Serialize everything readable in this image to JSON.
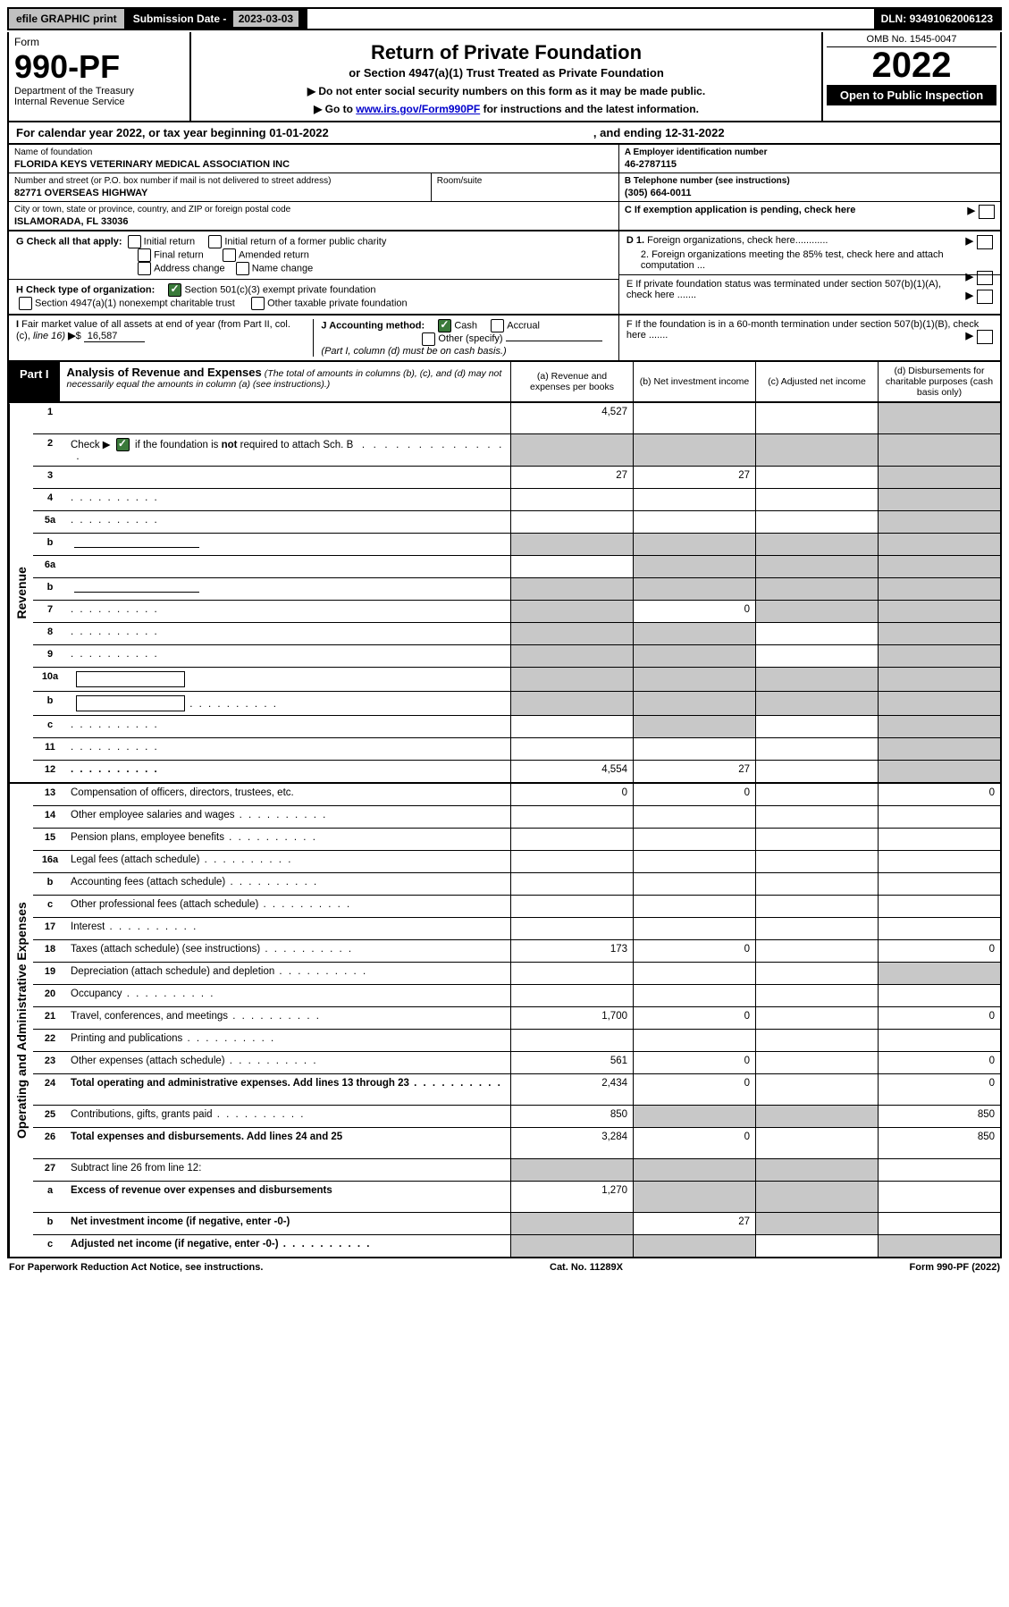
{
  "topbar": {
    "efile": "efile GRAPHIC print",
    "subdate_label": "Submission Date - ",
    "subdate_value": "2023-03-03",
    "dln_label": "DLN: ",
    "dln_value": "93491062006123"
  },
  "header": {
    "form_label": "Form",
    "form_number": "990-PF",
    "dept": "Department of the Treasury",
    "irs": "Internal Revenue Service",
    "title": "Return of Private Foundation",
    "subtitle": "or Section 4947(a)(1) Trust Treated as Private Foundation",
    "instr1": "▶ Do not enter social security numbers on this form as it may be made public.",
    "instr2_pre": "▶ Go to ",
    "instr2_link": "www.irs.gov/Form990PF",
    "instr2_post": " for instructions and the latest information.",
    "omb": "OMB No. 1545-0047",
    "year": "2022",
    "open": "Open to Public Inspection"
  },
  "calyear": {
    "left": "For calendar year 2022, or tax year beginning 01-01-2022",
    "right": ", and ending 12-31-2022"
  },
  "info": {
    "name_lbl": "Name of foundation",
    "name_val": "FLORIDA KEYS VETERINARY MEDICAL ASSOCIATION INC",
    "addr_lbl": "Number and street (or P.O. box number if mail is not delivered to street address)",
    "addr_val": "82771 OVERSEAS HIGHWAY",
    "room_lbl": "Room/suite",
    "city_lbl": "City or town, state or province, country, and ZIP or foreign postal code",
    "city_val": "ISLAMORADA, FL  33036",
    "a_lbl": "A Employer identification number",
    "a_val": "46-2787115",
    "b_lbl": "B Telephone number (see instructions)",
    "b_val": "(305) 664-0011",
    "c_lbl": "C If exemption application is pending, check here",
    "d1_lbl": "D 1. Foreign organizations, check here............",
    "d2_lbl": "2. Foreign organizations meeting the 85% test, check here and attach computation ...",
    "e_lbl": "E  If private foundation status was terminated under section 507(b)(1)(A), check here .......",
    "f_lbl": "F  If the foundation is in a 60-month termination under section 507(b)(1)(B), check here .......",
    "g_lbl": "G Check all that apply:",
    "g_opts": [
      "Initial return",
      "Initial return of a former public charity",
      "Final return",
      "Amended return",
      "Address change",
      "Name change"
    ],
    "h_lbl": "H Check type of organization:",
    "h_opt1": "Section 501(c)(3) exempt private foundation",
    "h_opt2": "Section 4947(a)(1) nonexempt charitable trust",
    "h_opt3": "Other taxable private foundation",
    "i_lbl": "I Fair market value of all assets at end of year (from Part II, col. (c), line 16)",
    "i_val": "16,587",
    "j_lbl": "J Accounting method:",
    "j_cash": "Cash",
    "j_accrual": "Accrual",
    "j_other": "Other (specify)",
    "j_note": "(Part I, column (d) must be on cash basis.)"
  },
  "part1": {
    "tab": "Part I",
    "title": "Analysis of Revenue and Expenses",
    "subtitle": "(The total of amounts in columns (b), (c), and (d) may not necessarily equal the amounts in column (a) (see instructions).)",
    "col_a": "(a)  Revenue and expenses per books",
    "col_b": "(b)  Net investment income",
    "col_c": "(c)  Adjusted net income",
    "col_d": "(d)  Disbursements for charitable purposes (cash basis only)"
  },
  "side": {
    "revenue": "Revenue",
    "expenses": "Operating and Administrative Expenses"
  },
  "rows": [
    {
      "n": "1",
      "d": "",
      "a": "4,527",
      "b": "",
      "c": "",
      "tall": true,
      "ds": true
    },
    {
      "n": "2",
      "d": "",
      "a": "",
      "b": "",
      "c": "",
      "shade_all": true,
      "tall": true,
      "bold_not": true
    },
    {
      "n": "3",
      "d": "",
      "a": "27",
      "b": "27",
      "c": "",
      "ds": true
    },
    {
      "n": "4",
      "d": "",
      "a": "",
      "b": "",
      "c": "",
      "dots": true,
      "ds": true
    },
    {
      "n": "5a",
      "d": "",
      "a": "",
      "b": "",
      "c": "",
      "dots": true,
      "ds": true
    },
    {
      "n": "b",
      "d": "",
      "a": "",
      "b": "",
      "c": "",
      "shade_all": true,
      "inline_line": true
    },
    {
      "n": "6a",
      "d": "",
      "a": "",
      "b": "",
      "c": "",
      "shade_bcd": true
    },
    {
      "n": "b",
      "d": "",
      "a": "",
      "b": "",
      "c": "",
      "shade_all": true,
      "inline_line": true
    },
    {
      "n": "7",
      "d": "",
      "a": "",
      "b": "0",
      "c": "",
      "shade_a": true,
      "shade_cd": true,
      "dots": true
    },
    {
      "n": "8",
      "d": "",
      "a": "",
      "b": "",
      "c": "",
      "shade_ab": true,
      "shade_d": true,
      "dots": true
    },
    {
      "n": "9",
      "d": "",
      "a": "",
      "b": "",
      "c": "",
      "shade_ab": true,
      "shade_d": true,
      "dots": true
    },
    {
      "n": "10a",
      "d": "",
      "a": "",
      "b": "",
      "c": "",
      "shade_all": true,
      "inline_box": true
    },
    {
      "n": "b",
      "d": "",
      "a": "",
      "b": "",
      "c": "",
      "shade_all": true,
      "inline_box": true,
      "dots": true
    },
    {
      "n": "c",
      "d": "",
      "a": "",
      "b": "",
      "c": "",
      "shade_b": true,
      "shade_d": true,
      "dots": true
    },
    {
      "n": "11",
      "d": "",
      "a": "",
      "b": "",
      "c": "",
      "dots": true,
      "ds": true
    },
    {
      "n": "12",
      "d": "",
      "a": "4,554",
      "b": "27",
      "c": "",
      "bold": true,
      "dots": true,
      "ds": true
    }
  ],
  "exp_rows": [
    {
      "n": "13",
      "d": "Compensation of officers, directors, trustees, etc.",
      "a": "0",
      "b": "0",
      "c": "",
      "di": "0"
    },
    {
      "n": "14",
      "d": "Other employee salaries and wages",
      "a": "",
      "b": "",
      "c": "",
      "di": "",
      "dots": true
    },
    {
      "n": "15",
      "d": "Pension plans, employee benefits",
      "a": "",
      "b": "",
      "c": "",
      "di": "",
      "dots": true
    },
    {
      "n": "16a",
      "d": "Legal fees (attach schedule)",
      "a": "",
      "b": "",
      "c": "",
      "di": "",
      "dots": true
    },
    {
      "n": "b",
      "d": "Accounting fees (attach schedule)",
      "a": "",
      "b": "",
      "c": "",
      "di": "",
      "dots": true
    },
    {
      "n": "c",
      "d": "Other professional fees (attach schedule)",
      "a": "",
      "b": "",
      "c": "",
      "di": "",
      "dots": true
    },
    {
      "n": "17",
      "d": "Interest",
      "a": "",
      "b": "",
      "c": "",
      "di": "",
      "dots": true
    },
    {
      "n": "18",
      "d": "Taxes (attach schedule) (see instructions)",
      "a": "173",
      "b": "0",
      "c": "",
      "di": "0",
      "dots": true
    },
    {
      "n": "19",
      "d": "Depreciation (attach schedule) and depletion",
      "a": "",
      "b": "",
      "c": "",
      "di": "",
      "shade_d": true,
      "dots": true
    },
    {
      "n": "20",
      "d": "Occupancy",
      "a": "",
      "b": "",
      "c": "",
      "di": "",
      "dots": true
    },
    {
      "n": "21",
      "d": "Travel, conferences, and meetings",
      "a": "1,700",
      "b": "0",
      "c": "",
      "di": "0",
      "dots": true
    },
    {
      "n": "22",
      "d": "Printing and publications",
      "a": "",
      "b": "",
      "c": "",
      "di": "",
      "dots": true
    },
    {
      "n": "23",
      "d": "Other expenses (attach schedule)",
      "a": "561",
      "b": "0",
      "c": "",
      "di": "0",
      "dots": true
    },
    {
      "n": "24",
      "d": "Total operating and administrative expenses. Add lines 13 through 23",
      "a": "2,434",
      "b": "0",
      "c": "",
      "di": "0",
      "bold": true,
      "tall": true,
      "dots": true
    },
    {
      "n": "25",
      "d": "Contributions, gifts, grants paid",
      "a": "850",
      "b": "",
      "c": "",
      "di": "850",
      "shade_bc": true,
      "dots": true
    },
    {
      "n": "26",
      "d": "Total expenses and disbursements. Add lines 24 and 25",
      "a": "3,284",
      "b": "0",
      "c": "",
      "di": "850",
      "bold": true,
      "tall": true
    },
    {
      "n": "27",
      "d": "Subtract line 26 from line 12:",
      "a": "",
      "b": "",
      "c": "",
      "di": "",
      "shade_all": true
    },
    {
      "n": "a",
      "d": "Excess of revenue over expenses and disbursements",
      "a": "1,270",
      "b": "",
      "c": "",
      "di": "",
      "bold": true,
      "shade_bcd": true,
      "tall": true
    },
    {
      "n": "b",
      "d": "Net investment income (if negative, enter -0-)",
      "a": "",
      "b": "27",
      "c": "",
      "di": "",
      "bold": true,
      "shade_a": true,
      "shade_cd": true
    },
    {
      "n": "c",
      "d": "Adjusted net income (if negative, enter -0-)",
      "a": "",
      "b": "",
      "c": "",
      "di": "",
      "bold": true,
      "shade_ab": true,
      "shade_d": true,
      "dots": true
    }
  ],
  "footer": {
    "left": "For Paperwork Reduction Act Notice, see instructions.",
    "mid": "Cat. No. 11289X",
    "right": "Form 990-PF (2022)"
  }
}
